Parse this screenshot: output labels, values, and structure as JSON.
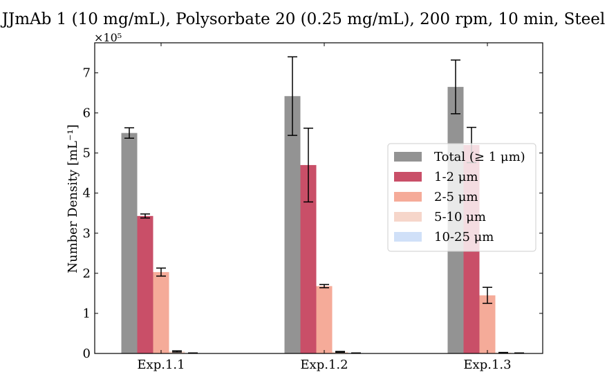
{
  "chart_data": {
    "type": "bar",
    "title": "JJmAb 1 (10 mg/mL), Polysorbate 20 (0.25 mg/mL), 200 rpm, 10 min, Steel",
    "ylabel": "Number Density [mL⁻¹]",
    "xlabel": "",
    "y_multiplier_label": "×10⁵",
    "ylim": [
      0,
      7.75
    ],
    "yticks": [
      "0",
      "1",
      "2",
      "3",
      "4",
      "5",
      "6",
      "7"
    ],
    "categories": [
      "Exp.1.1",
      "Exp.1.2",
      "Exp.1.3"
    ],
    "legend_position": "center-right",
    "grid": false,
    "series": [
      {
        "name": "Total (≥ 1 μm)",
        "color": "#808080",
        "opacity": 0.85,
        "values": [
          5.5,
          6.42,
          6.65
        ],
        "errors": [
          0.13,
          0.98,
          0.67
        ]
      },
      {
        "name": "1-2 μm",
        "color": "#c0304e",
        "opacity": 0.85,
        "values": [
          3.43,
          4.7,
          5.2
        ],
        "errors": [
          0.05,
          0.92,
          0.44
        ]
      },
      {
        "name": "2-5 μm",
        "color": "#f39c87",
        "opacity": 0.85,
        "values": [
          2.03,
          1.68,
          1.45
        ],
        "errors": [
          0.1,
          0.04,
          0.2
        ]
      },
      {
        "name": "5-10 μm",
        "color": "#f5cfc1",
        "opacity": 0.85,
        "values": [
          0.05,
          0.04,
          0.02
        ],
        "errors": [
          0.015,
          0.01,
          0.005
        ]
      },
      {
        "name": "10-25 μm",
        "color": "#c8dbf7",
        "opacity": 0.85,
        "values": [
          0.01,
          0.01,
          0.01
        ],
        "errors": [
          0.003,
          0.003,
          0.003
        ]
      }
    ]
  }
}
